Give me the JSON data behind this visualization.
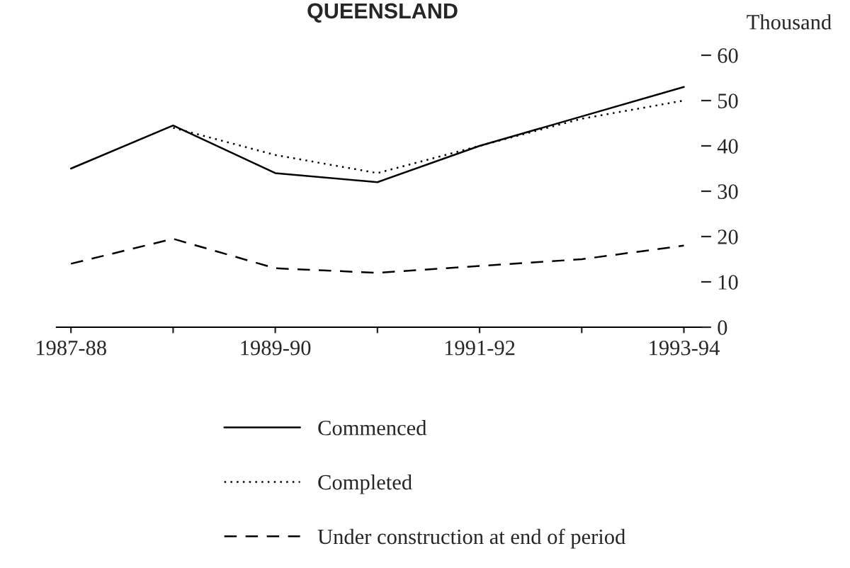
{
  "chart_data": {
    "type": "line",
    "title": "QUEENSLAND",
    "ylabel": "Thousand",
    "categories": [
      "1987-88",
      null,
      "1989-90",
      null,
      "1991-92",
      null,
      "1993-94"
    ],
    "series": [
      {
        "name": "Commenced",
        "color": "#000000",
        "line_style": "solid",
        "values": [
          35,
          44.5,
          34,
          32,
          40,
          46.5,
          53
        ]
      },
      {
        "name": "Completed",
        "color": "#000000",
        "line_style": "dotted",
        "values": [
          null,
          44,
          38,
          34,
          40,
          46,
          50
        ]
      },
      {
        "name": "Under construction at end of period",
        "color": "#000000",
        "line_style": "dashed",
        "values": [
          14,
          19.5,
          13,
          12,
          13.5,
          15,
          18
        ]
      }
    ],
    "ylim": [
      0,
      60
    ],
    "yticks": [
      0,
      10,
      20,
      30,
      40,
      50,
      60
    ],
    "grid": false,
    "legend": "bottom",
    "marker": "none"
  }
}
